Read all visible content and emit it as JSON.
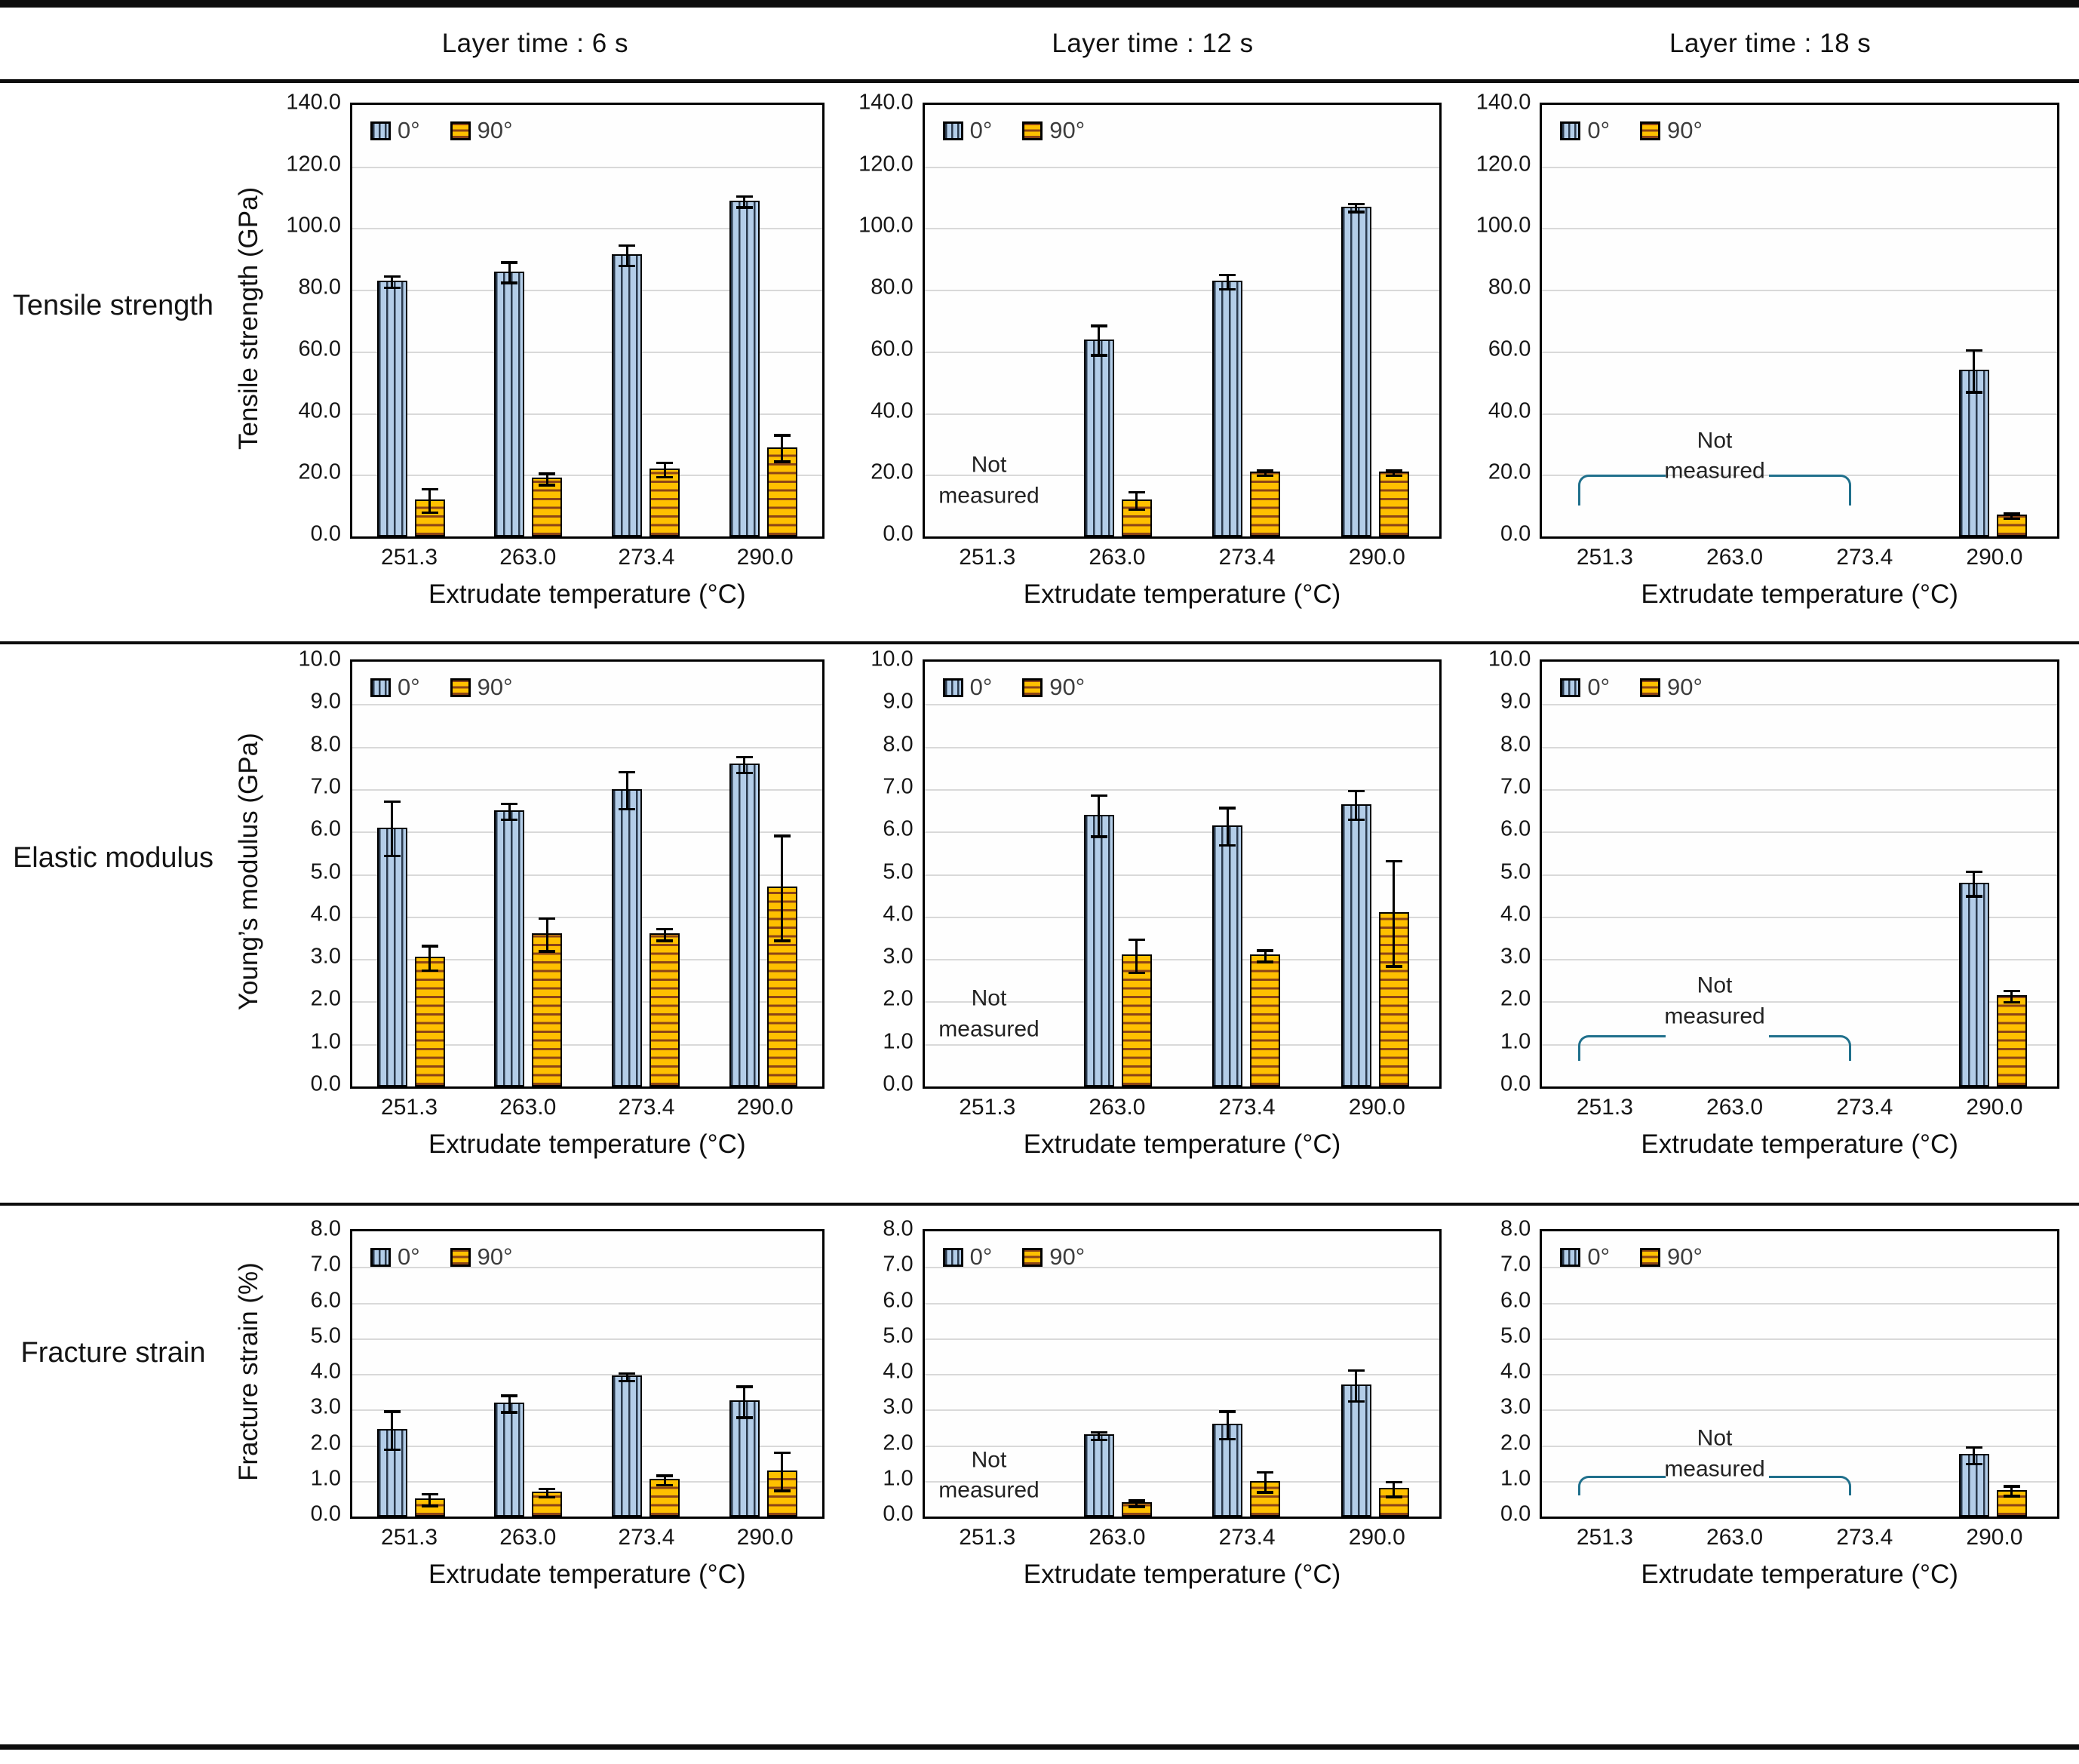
{
  "figure": {
    "column_headers": [
      "Layer time : 6 s",
      "Layer time : 12 s",
      "Layer time : 18 s"
    ],
    "row_labels": [
      "Tensile strength",
      "Elastic modulus",
      "Fracture strain"
    ]
  },
  "legend": {
    "series0": "0",
    "series90": "90",
    "degree_symbol": "°"
  },
  "not_measured_label": "Not measured",
  "colors": {
    "bar0_fill": "#b3cde8",
    "bar0_stripe": "#2b3a4d",
    "bar90_fill": "#ffc000",
    "bar90_stripe": "#8c4516",
    "gridline": "#d9d9d9",
    "frame": "#000000",
    "bracket": "#20708c",
    "error_bar": "#000000"
  },
  "chart_data": [
    {
      "type": "bar",
      "row": 0,
      "col": 0,
      "ylabel": "Tensile strength (GPa)",
      "xlabel": "Extrudate temperature (°C)",
      "ylim": [
        0,
        140
      ],
      "ytick_step": 20,
      "grid": true,
      "legend_position": "top-left",
      "categories": [
        "251.3",
        "263.0",
        "273.4",
        "290.0"
      ],
      "series": [
        {
          "name": "0°",
          "values": [
            83,
            86,
            91.5,
            109
          ],
          "errors": [
            2,
            3.5,
            3.5,
            2
          ]
        },
        {
          "name": "90°",
          "values": [
            12,
            19,
            22,
            29
          ],
          "errors": [
            4,
            2,
            2.5,
            4.5
          ]
        }
      ],
      "not_measured": null
    },
    {
      "type": "bar",
      "row": 0,
      "col": 1,
      "ylabel": "",
      "xlabel": "Extrudate temperature (°C)",
      "ylim": [
        0,
        140
      ],
      "ytick_step": 20,
      "grid": true,
      "legend_position": "top-left",
      "categories": [
        "251.3",
        "263.0",
        "273.4",
        "290.0"
      ],
      "series": [
        {
          "name": "0°",
          "values": [
            null,
            64,
            83,
            107
          ],
          "errors": [
            null,
            5,
            2.5,
            1.5
          ]
        },
        {
          "name": "90°",
          "values": [
            null,
            12,
            21,
            21
          ],
          "errors": [
            null,
            3,
            1,
            1
          ]
        }
      ],
      "not_measured": {
        "style": "text",
        "slot": 0,
        "text_y": 18
      }
    },
    {
      "type": "bar",
      "row": 0,
      "col": 2,
      "ylabel": "",
      "xlabel": "Extrudate temperature (°C)",
      "ylim": [
        0,
        140
      ],
      "ytick_step": 20,
      "grid": true,
      "legend_position": "top-left",
      "categories": [
        "251.3",
        "263.0",
        "273.4",
        "290.0"
      ],
      "series": [
        {
          "name": "0°",
          "values": [
            null,
            null,
            null,
            54
          ],
          "errors": [
            null,
            null,
            null,
            7
          ]
        },
        {
          "name": "90°",
          "values": [
            null,
            null,
            null,
            7
          ],
          "errors": [
            null,
            null,
            null,
            1
          ]
        }
      ],
      "not_measured": {
        "style": "bracket",
        "line_y": 20,
        "hook_y": 10,
        "text_y": 26
      }
    },
    {
      "type": "bar",
      "row": 1,
      "col": 0,
      "ylabel": "Young’s modulus (GPa)",
      "xlabel": "Extrudate temperature (°C)",
      "ylim": [
        0,
        10
      ],
      "ytick_step": 1,
      "grid": true,
      "legend_position": "top-left",
      "categories": [
        "251.3",
        "263.0",
        "273.4",
        "290.0"
      ],
      "series": [
        {
          "name": "0°",
          "values": [
            6.1,
            6.5,
            7.0,
            7.6
          ],
          "errors": [
            0.65,
            0.2,
            0.45,
            0.2
          ]
        },
        {
          "name": "90°",
          "values": [
            3.05,
            3.6,
            3.6,
            4.7
          ],
          "errors": [
            0.3,
            0.4,
            0.15,
            1.25
          ]
        }
      ],
      "not_measured": null
    },
    {
      "type": "bar",
      "row": 1,
      "col": 1,
      "ylabel": "",
      "xlabel": "Extrudate temperature (°C)",
      "ylim": [
        0,
        10
      ],
      "ytick_step": 1,
      "grid": true,
      "legend_position": "top-left",
      "categories": [
        "251.3",
        "263.0",
        "273.4",
        "290.0"
      ],
      "series": [
        {
          "name": "0°",
          "values": [
            null,
            6.4,
            6.15,
            6.65
          ],
          "errors": [
            null,
            0.5,
            0.45,
            0.35
          ]
        },
        {
          "name": "90°",
          "values": [
            null,
            3.1,
            3.1,
            4.1
          ],
          "errors": [
            null,
            0.4,
            0.15,
            1.25
          ]
        }
      ],
      "not_measured": {
        "style": "text",
        "slot": 0,
        "text_y": 1.7
      }
    },
    {
      "type": "bar",
      "row": 1,
      "col": 2,
      "ylabel": "",
      "xlabel": "Extrudate temperature (°C)",
      "ylim": [
        0,
        10
      ],
      "ytick_step": 1,
      "grid": true,
      "legend_position": "top-left",
      "categories": [
        "251.3",
        "263.0",
        "273.4",
        "290.0"
      ],
      "series": [
        {
          "name": "0°",
          "values": [
            null,
            null,
            null,
            4.8
          ],
          "errors": [
            null,
            null,
            null,
            0.3
          ]
        },
        {
          "name": "90°",
          "values": [
            null,
            null,
            null,
            2.15
          ],
          "errors": [
            null,
            null,
            null,
            0.15
          ]
        }
      ],
      "not_measured": {
        "style": "bracket",
        "line_y": 1.2,
        "hook_y": 0.6,
        "text_y": 2.0
      }
    },
    {
      "type": "bar",
      "row": 2,
      "col": 0,
      "ylabel": "Fracture strain (%)",
      "xlabel": "Extrudate temperature (°C)",
      "ylim": [
        0,
        8
      ],
      "ytick_step": 1,
      "grid": true,
      "legend_position": "top-left",
      "categories": [
        "251.3",
        "263.0",
        "273.4",
        "290.0"
      ],
      "series": [
        {
          "name": "0°",
          "values": [
            2.45,
            3.2,
            3.95,
            3.25
          ],
          "errors": [
            0.55,
            0.25,
            0.12,
            0.45
          ]
        },
        {
          "name": "90°",
          "values": [
            0.5,
            0.7,
            1.05,
            1.3
          ],
          "errors": [
            0.18,
            0.13,
            0.15,
            0.55
          ]
        }
      ],
      "not_measured": null
    },
    {
      "type": "bar",
      "row": 2,
      "col": 1,
      "ylabel": "",
      "xlabel": "Extrudate temperature (°C)",
      "ylim": [
        0,
        8
      ],
      "ytick_step": 1,
      "grid": true,
      "legend_position": "top-left",
      "categories": [
        "251.3",
        "263.0",
        "273.4",
        "290.0"
      ],
      "series": [
        {
          "name": "0°",
          "values": [
            null,
            2.3,
            2.6,
            3.7
          ],
          "errors": [
            null,
            0.12,
            0.4,
            0.45
          ]
        },
        {
          "name": "90°",
          "values": [
            null,
            0.4,
            1.0,
            0.8
          ],
          "errors": [
            null,
            0.1,
            0.3,
            0.22
          ]
        }
      ],
      "not_measured": {
        "style": "text",
        "slot": 0,
        "text_y": 1.15
      }
    },
    {
      "type": "bar",
      "row": 2,
      "col": 2,
      "ylabel": "",
      "xlabel": "Extrudate temperature (°C)",
      "ylim": [
        0,
        8
      ],
      "ytick_step": 1,
      "grid": true,
      "legend_position": "top-left",
      "categories": [
        "251.3",
        "263.0",
        "273.4",
        "290.0"
      ],
      "series": [
        {
          "name": "0°",
          "values": [
            null,
            null,
            null,
            1.75
          ],
          "errors": [
            null,
            null,
            null,
            0.25
          ]
        },
        {
          "name": "90°",
          "values": [
            null,
            null,
            null,
            0.75
          ],
          "errors": [
            null,
            null,
            null,
            0.15
          ]
        }
      ],
      "not_measured": {
        "style": "bracket",
        "line_y": 1.15,
        "hook_y": 0.6,
        "text_y": 1.75
      }
    }
  ]
}
